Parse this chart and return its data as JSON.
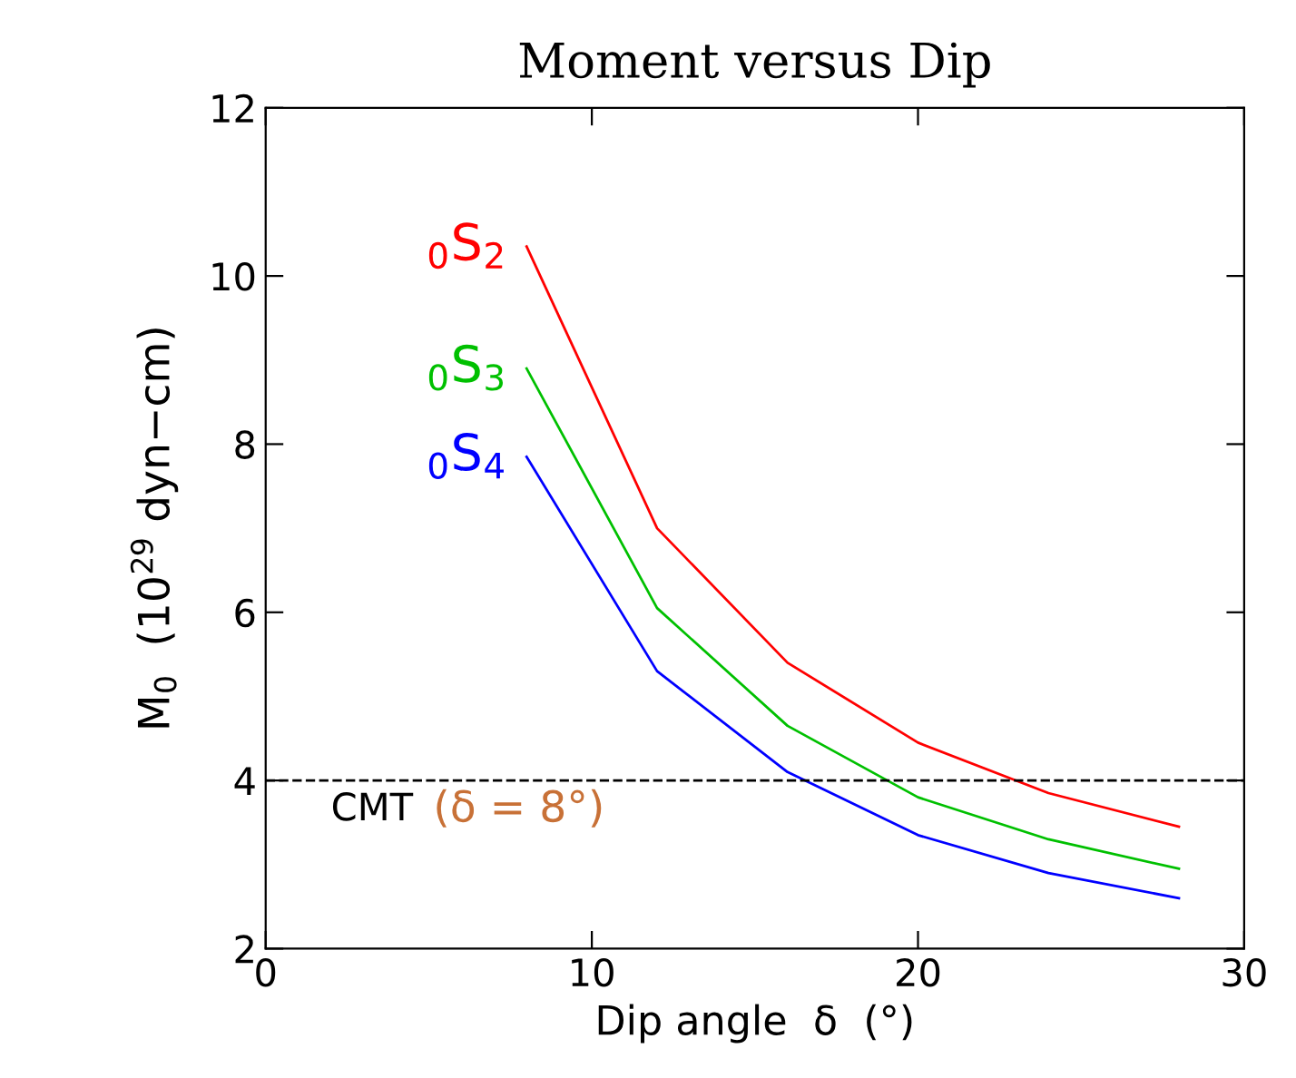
{
  "chart_data": {
    "type": "line",
    "title": "Moment versus Dip",
    "xlabel": "Dip angle  δ  (°)",
    "ylabel": "M$_{0}$  (10$^{29}$ dyn−cm)",
    "x": [
      8,
      12,
      16,
      20,
      24,
      28
    ],
    "series": [
      {
        "name": "$_{0}$S$_{2}$",
        "color": "#ff0000",
        "values": [
          10.35,
          7.0,
          5.4,
          4.45,
          3.85,
          3.45
        ]
      },
      {
        "name": "$_{0}$S$_{3}$",
        "color": "#00c000",
        "values": [
          8.9,
          6.05,
          4.65,
          3.8,
          3.3,
          2.95
        ]
      },
      {
        "name": "$_{0}$S$_{4}$",
        "color": "#0000ff",
        "values": [
          7.85,
          5.3,
          4.1,
          3.35,
          2.9,
          2.6
        ]
      }
    ],
    "xlim": [
      0,
      30
    ],
    "xticks": [
      0,
      10,
      20,
      30
    ],
    "ylim": [
      2,
      12
    ],
    "yticks": [
      2,
      4,
      6,
      8,
      10,
      12
    ],
    "ref_lines": [
      {
        "axis": "y",
        "value": 4,
        "label": "CMT",
        "color": "#000000",
        "line_style": "dashed"
      }
    ],
    "annotations": [
      "(δ = 8°)"
    ],
    "grid": false,
    "legend": false,
    "marker": "none",
    "line_style": "solid"
  }
}
